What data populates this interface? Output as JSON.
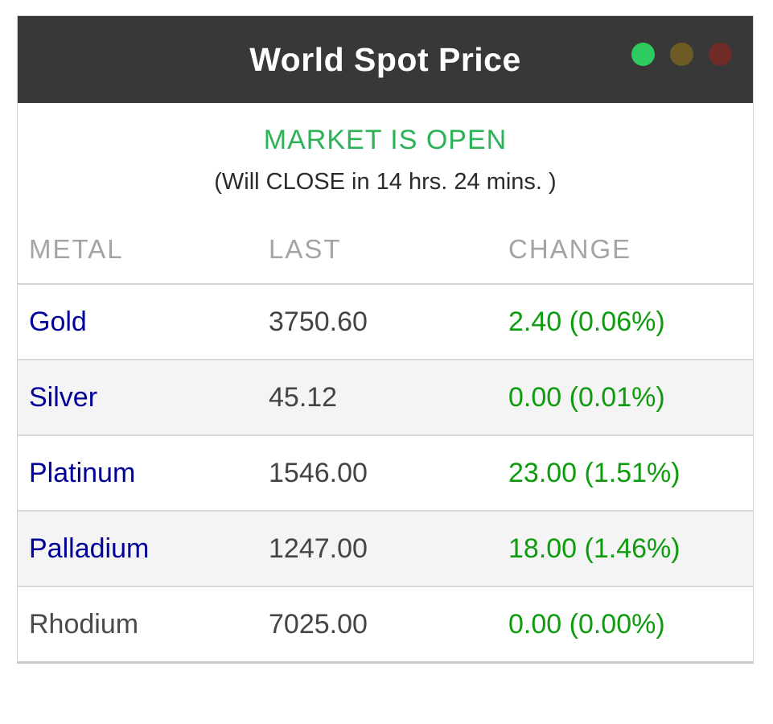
{
  "window": {
    "title": "World Spot Price",
    "traffic_lights": [
      {
        "name": "green-light",
        "color": "#2ecc60"
      },
      {
        "name": "olive-light",
        "color": "#6d5b26"
      },
      {
        "name": "red-light",
        "color": "#702a28"
      }
    ],
    "titlebar_bg": "#383838"
  },
  "status": {
    "market_state": "MARKET IS OPEN",
    "market_state_color": "#2cb357",
    "countdown": "(Will CLOSE in 14 hrs. 24 mins. )"
  },
  "table": {
    "columns": [
      "METAL",
      "LAST",
      "CHANGE"
    ],
    "rows": [
      {
        "metal": "Gold",
        "last": "3750.60",
        "change": "2.40 (0.06%)",
        "metal_is_link": true
      },
      {
        "metal": "Silver",
        "last": "45.12",
        "change": "0.00 (0.01%)",
        "metal_is_link": true
      },
      {
        "metal": "Platinum",
        "last": "1546.00",
        "change": "23.00 (1.51%)",
        "metal_is_link": true
      },
      {
        "metal": "Palladium",
        "last": "1247.00",
        "change": "18.00 (1.46%)",
        "metal_is_link": true
      },
      {
        "metal": "Rhodium",
        "last": "7025.00",
        "change": "0.00 (0.00%)",
        "metal_is_link": false
      }
    ]
  },
  "colors": {
    "link": "#000099",
    "value_text": "#444444",
    "change_positive": "#0e9b0e",
    "header_label": "#a4a4a4",
    "alt_row_bg": "#f4f4f4",
    "panel_border": "#d2d2d2"
  }
}
